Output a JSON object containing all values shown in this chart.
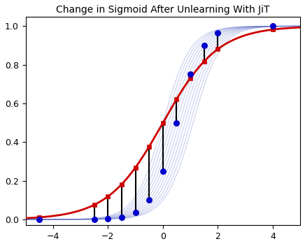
{
  "title": "Change in Sigmoid After Unlearning With JiT",
  "xlim": [
    -5.0,
    5.0
  ],
  "ylim": [
    -0.03,
    1.05
  ],
  "xticks": [
    -4,
    -2,
    0,
    2,
    4
  ],
  "yticks": [
    0.0,
    0.2,
    0.4,
    0.6,
    0.8,
    1.0
  ],
  "red_curve_color": "#cc0000",
  "blue_curve_color": "#6677cc",
  "blue_curve_alpha": 0.35,
  "blue_curve_shifts": [
    0.0,
    0.1,
    0.2,
    0.3,
    0.4,
    0.5,
    0.6,
    0.7,
    0.8,
    0.9,
    1.0,
    1.1
  ],
  "blue_curve_scales": [
    2.0,
    2.0,
    2.0,
    2.0,
    2.0,
    2.0,
    2.0,
    2.0,
    2.0,
    2.0,
    2.0,
    2.0
  ],
  "red_scale": 1.0,
  "red_shift": 0.0,
  "blue_dot_scale": 2.2,
  "blue_dot_shift": 0.5,
  "sample_x_points": [
    -4.5,
    -2.5,
    -2.0,
    -1.5,
    -1.0,
    -0.5,
    0.0,
    0.5,
    1.0,
    1.5,
    2.0,
    4.0
  ],
  "red_dot_color": "#cc0000",
  "blue_dot_color": "#0000cc",
  "dot_size_red": 22,
  "dot_size_blue": 30,
  "red_dot_marker": "s",
  "blue_dot_marker": "o",
  "line_color": "black",
  "line_width": 1.5,
  "title_fontsize": 10,
  "tick_fontsize": 9,
  "background_color": "#ffffff",
  "blue_curve_linewidth": 0.8,
  "red_curve_linewidth": 2.0
}
